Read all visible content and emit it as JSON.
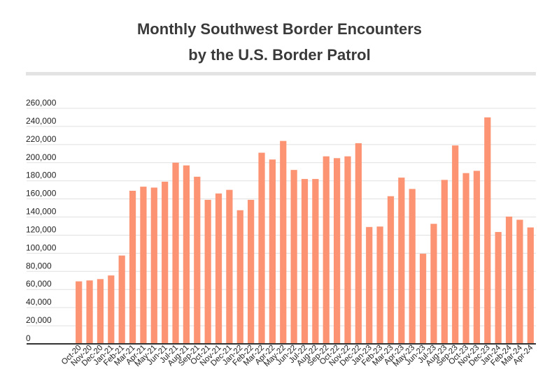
{
  "chart_data": {
    "type": "bar",
    "title": "Monthly Southwest Border Encounters",
    "subtitle": "by the U.S. Border Patrol",
    "xlabel": "",
    "ylabel": "",
    "ylim": [
      0,
      260000
    ],
    "yticks": [
      0,
      20000,
      40000,
      60000,
      80000,
      100000,
      120000,
      140000,
      160000,
      180000,
      200000,
      220000,
      240000,
      260000
    ],
    "ytick_labels": [
      "0",
      "20,000",
      "40,000",
      "60,000",
      "80,000",
      "100,000",
      "120,000",
      "140,000",
      "160,000",
      "180,000",
      "200,000",
      "220,000",
      "240,000",
      "260,000"
    ],
    "grid": true,
    "categories": [
      "Oct-20",
      "Nov-20",
      "Dec-20",
      "Jan-21",
      "Feb-21",
      "Mar-21",
      "Apr-21",
      "May-21",
      "Jun-21",
      "Jul-21",
      "Aug-21",
      "Sep-21",
      "Oct-21",
      "Nov-21",
      "Dec-21",
      "Jan-22",
      "Feb-22",
      "Mar-22",
      "Apr-22",
      "May-22",
      "Jun-22",
      "Jul-22",
      "Aug-22",
      "Sep-22",
      "Oct-22",
      "Nov-22",
      "Dec-22",
      "Jan-23",
      "Feb-23",
      "Mar-23",
      "Apr-23",
      "May-23",
      "Jun-23",
      "Jul-23",
      "Aug-23",
      "Sep-23",
      "Oct-23",
      "Nov-23",
      "Dec-23",
      "Jan-24",
      "Feb-24",
      "Mar-24",
      "Apr-24"
    ],
    "values": [
      69000,
      70000,
      71500,
      75500,
      97500,
      169000,
      173500,
      172500,
      179000,
      200000,
      197000,
      184500,
      159000,
      166000,
      170000,
      147500,
      159000,
      211000,
      203500,
      224000,
      192000,
      182000,
      182000,
      207000,
      205000,
      207000,
      221500,
      129000,
      129500,
      163000,
      183500,
      171000,
      99500,
      132500,
      181000,
      219000,
      188500,
      191000,
      250000,
      123500,
      140500,
      137000,
      128500
    ],
    "bar_color": "#fc9473",
    "axis_color": "#333333",
    "grid_color": "#e0e0e0"
  }
}
